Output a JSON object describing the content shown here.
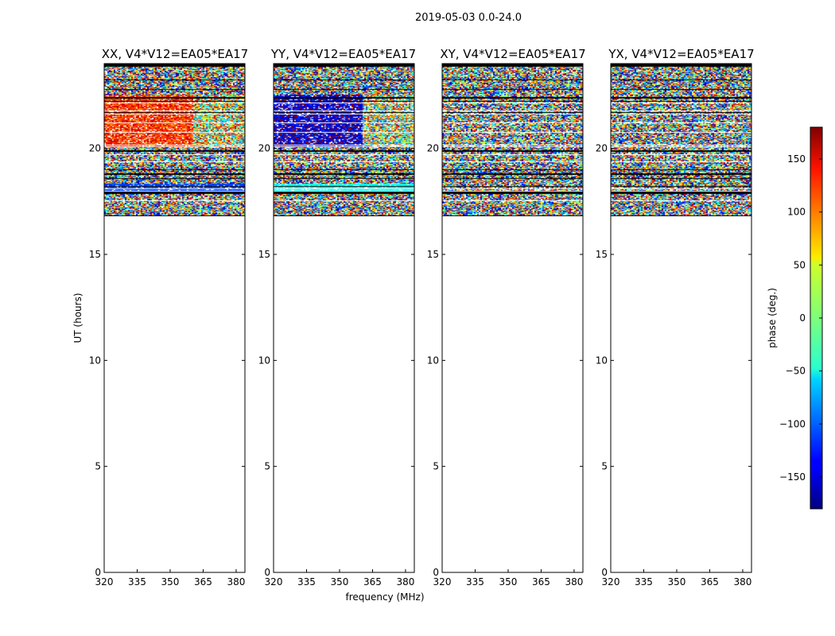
{
  "chart_data": {
    "type": "heatmap",
    "suptitle": "2019-05-03 0.0-24.0",
    "xlabel": "frequency (MHz)",
    "ylabel": "UT (hours)",
    "xlim": [
      320,
      384
    ],
    "ylim": [
      0,
      24
    ],
    "xticks": [
      "320",
      "335",
      "350",
      "365",
      "380"
    ],
    "yticks": [
      "0",
      "5",
      "10",
      "15",
      "20"
    ],
    "panels": [
      {
        "title": "XX, V4*V12=EA05*EA17",
        "phase_mode": "coherent",
        "low_band_phase": 120,
        "high_band_phase": 40
      },
      {
        "title": "YY, V4*V12=EA05*EA17",
        "phase_mode": "coherent",
        "low_band_phase": -150,
        "high_band_phase": 20
      },
      {
        "title": "XY, V4*V12=EA05*EA17",
        "phase_mode": "noise"
      },
      {
        "title": "YX, V4*V12=EA05*EA17",
        "phase_mode": "noise"
      }
    ],
    "data_range_hours": [
      16.8,
      24.0
    ],
    "colorbar": {
      "label": "phase (deg.)",
      "range": [
        -180,
        180
      ],
      "ticks": [
        "150",
        "100",
        "50",
        "0",
        "−50",
        "−100",
        "−150"
      ],
      "colormap": "jet"
    }
  }
}
